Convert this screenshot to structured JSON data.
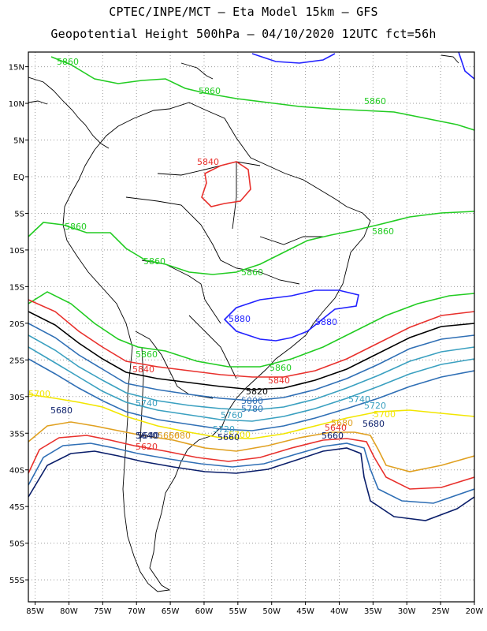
{
  "header": {
    "line1": "CPTEC/INPE/MCT –  Eta Model 15km – GFS",
    "line2": "Geopotential Height 500hPa – 04/10/2020 12UTC fct=56h"
  },
  "axes": {
    "lat_labels": [
      "15N",
      "10N",
      "5N",
      "EQ",
      "5S",
      "10S",
      "15S",
      "20S",
      "25S",
      "30S",
      "35S",
      "40S",
      "45S",
      "50S",
      "55S"
    ],
    "lon_labels": [
      "85W",
      "80W",
      "75W",
      "70W",
      "65W",
      "60W",
      "55W",
      "50W",
      "45W",
      "40W",
      "35W",
      "30W",
      "25W",
      "20W"
    ]
  },
  "colors": {
    "green": "#22cc22",
    "blue": "#2222ff",
    "red": "#e8302c",
    "black": "#000000",
    "steel": "#2f6fb5",
    "teal": "#3aa0c0",
    "yellow": "#f2e600",
    "orange": "#e0a020",
    "navy": "#0a1e6a"
  },
  "contour_labels": [
    {
      "text": "5860",
      "color": "green"
    },
    {
      "text": "5860",
      "color": "green"
    },
    {
      "text": "5860",
      "color": "green"
    },
    {
      "text": "5860",
      "color": "green"
    },
    {
      "text": "5860",
      "color": "green"
    },
    {
      "text": "5860",
      "color": "green"
    },
    {
      "text": "5860",
      "color": "green"
    },
    {
      "text": "5860",
      "color": "green"
    },
    {
      "text": "5860",
      "color": "green"
    },
    {
      "text": "5840",
      "color": "red"
    },
    {
      "text": "5880",
      "color": "blue"
    },
    {
      "text": "5880",
      "color": "blue"
    },
    {
      "text": "5840",
      "color": "red"
    },
    {
      "text": "5840",
      "color": "red"
    },
    {
      "text": "5820",
      "color": "black"
    },
    {
      "text": "5800",
      "color": "steel"
    },
    {
      "text": "5780",
      "color": "steel"
    },
    {
      "text": "5760",
      "color": "teal"
    },
    {
      "text": "5740",
      "color": "teal"
    },
    {
      "text": "5740",
      "color": "teal"
    },
    {
      "text": "5720",
      "color": "teal"
    },
    {
      "text": "5720",
      "color": "teal"
    },
    {
      "text": "5700",
      "color": "yellow"
    },
    {
      "text": "5700",
      "color": "yellow"
    },
    {
      "text": "5680",
      "color": "orange"
    },
    {
      "text": "5660",
      "color": "orange"
    },
    {
      "text": "5680",
      "color": "orange"
    },
    {
      "text": "5680",
      "color": "navy"
    },
    {
      "text": "5660",
      "color": "navy"
    },
    {
      "text": "5640",
      "color": "navy"
    },
    {
      "text": "5620",
      "color": "red"
    },
    {
      "text": "5640",
      "color": "red"
    },
    {
      "text": "5680",
      "color": "navy"
    },
    {
      "text": "5660",
      "color": "navy"
    },
    {
      "text": "5640",
      "color": "navy"
    },
    {
      "text": "5700",
      "color": "yellow"
    }
  ]
}
